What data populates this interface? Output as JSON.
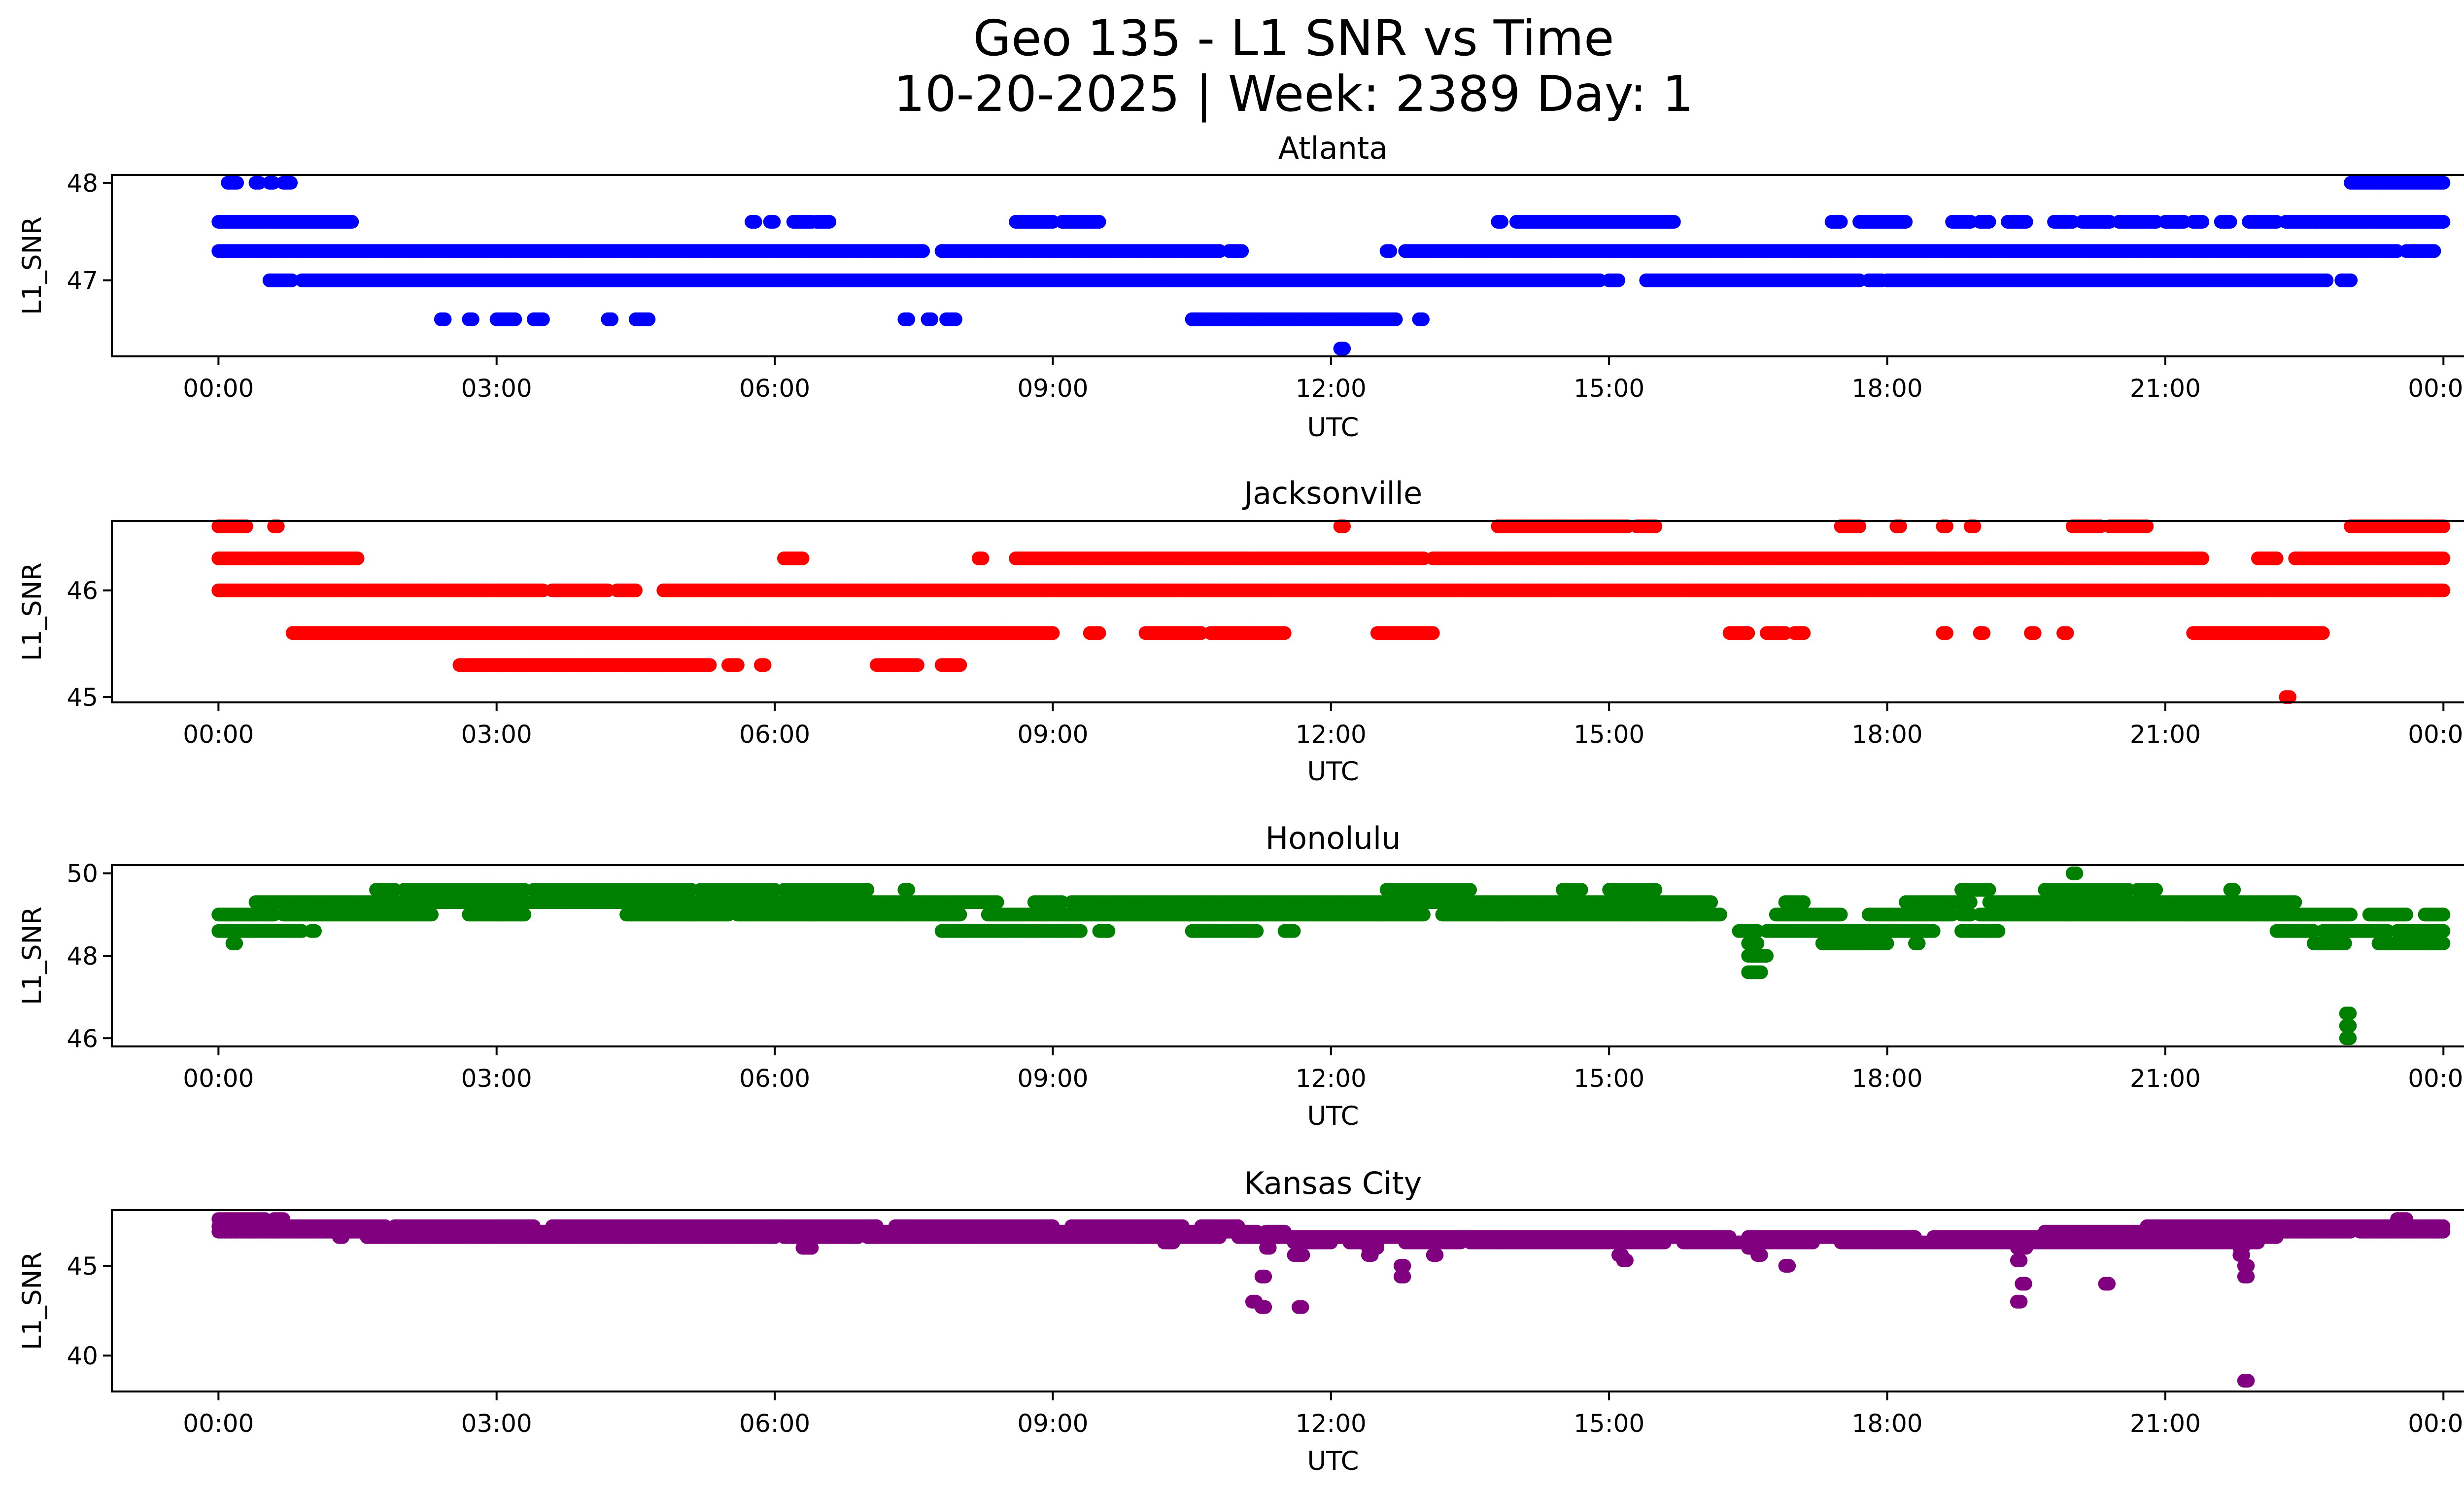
{
  "figure": {
    "title_line1": "Geo 135 - L1 SNR vs Time",
    "title_line2": "10-20-2025 | Week: 2389 Day: 1"
  },
  "chart_data": [
    {
      "type": "scatter",
      "title": "Atlanta",
      "xlabel": "UTC",
      "ylabel": "L1_SNR",
      "color": "#0000ff",
      "xlim_hours": [
        -1.15,
        25.2
      ],
      "ylim": [
        46.22,
        48.08
      ],
      "yticks": [
        47,
        48
      ],
      "xticks": [
        "00:00",
        "03:00",
        "06:00",
        "09:00",
        "12:00",
        "15:00",
        "18:00",
        "21:00",
        "00:00"
      ],
      "bands": [
        {
          "y": 48.0,
          "segments": [
            [
              0.1,
              0.2
            ],
            [
              0.4,
              0.45
            ],
            [
              0.55,
              0.6
            ],
            [
              0.7,
              0.78
            ],
            [
              23.0,
              24.0
            ]
          ]
        },
        {
          "y": 47.6,
          "segments": [
            [
              0.0,
              1.45
            ],
            [
              5.75,
              5.8
            ],
            [
              5.95,
              6.0
            ],
            [
              6.2,
              6.4
            ],
            [
              6.45,
              6.6
            ],
            [
              8.6,
              9.0
            ],
            [
              9.1,
              9.5
            ],
            [
              13.8,
              13.85
            ],
            [
              14.0,
              15.7
            ],
            [
              17.4,
              17.5
            ],
            [
              17.7,
              18.2
            ],
            [
              18.7,
              18.9
            ],
            [
              19.0,
              19.1
            ],
            [
              19.3,
              19.5
            ],
            [
              19.8,
              20.0
            ],
            [
              20.1,
              20.4
            ],
            [
              20.5,
              20.9
            ],
            [
              21.0,
              21.2
            ],
            [
              21.3,
              21.4
            ],
            [
              21.6,
              21.7
            ],
            [
              21.9,
              22.2
            ],
            [
              22.3,
              24.0
            ]
          ]
        },
        {
          "y": 47.3,
          "segments": [
            [
              0.0,
              7.6
            ],
            [
              7.8,
              10.8
            ],
            [
              10.9,
              11.05
            ],
            [
              12.6,
              12.65
            ],
            [
              12.8,
              23.5
            ],
            [
              23.6,
              23.9
            ]
          ]
        },
        {
          "y": 47.0,
          "segments": [
            [
              0.55,
              0.8
            ],
            [
              0.9,
              14.9
            ],
            [
              15.0,
              15.1
            ],
            [
              15.4,
              17.7
            ],
            [
              17.8,
              17.95
            ],
            [
              18.0,
              22.75
            ],
            [
              22.9,
              23.0
            ]
          ]
        },
        {
          "y": 46.6,
          "segments": [
            [
              2.4,
              2.45
            ],
            [
              2.7,
              2.75
            ],
            [
              3.0,
              3.2
            ],
            [
              3.4,
              3.5
            ],
            [
              4.2,
              4.25
            ],
            [
              4.5,
              4.65
            ],
            [
              7.4,
              7.45
            ],
            [
              7.65,
              7.7
            ],
            [
              7.85,
              7.95
            ],
            [
              10.5,
              12.7
            ],
            [
              12.95,
              13.0
            ]
          ]
        },
        {
          "y": 46.3,
          "segments": [
            [
              12.1,
              12.15
            ]
          ]
        }
      ]
    },
    {
      "type": "scatter",
      "title": "Jacksonville",
      "xlabel": "UTC",
      "ylabel": "L1_SNR",
      "color": "#ff0000",
      "xlim_hours": [
        -1.15,
        25.2
      ],
      "ylim": [
        44.95,
        46.65
      ],
      "yticks": [
        45,
        46
      ],
      "xticks": [
        "00:00",
        "03:00",
        "06:00",
        "09:00",
        "12:00",
        "15:00",
        "18:00",
        "21:00",
        "00:00"
      ],
      "bands": [
        {
          "y": 46.6,
          "segments": [
            [
              0.0,
              0.3
            ],
            [
              0.6,
              0.65
            ],
            [
              12.1,
              12.15
            ],
            [
              13.8,
              15.2
            ],
            [
              15.3,
              15.5
            ],
            [
              17.5,
              17.7
            ],
            [
              18.1,
              18.15
            ],
            [
              18.6,
              18.65
            ],
            [
              18.9,
              18.95
            ],
            [
              20.0,
              20.3
            ],
            [
              20.4,
              20.8
            ],
            [
              23.0,
              24.0
            ]
          ]
        },
        {
          "y": 46.3,
          "segments": [
            [
              0.0,
              1.5
            ],
            [
              6.1,
              6.3
            ],
            [
              8.2,
              8.25
            ],
            [
              8.6,
              13.0
            ],
            [
              13.1,
              21.4
            ],
            [
              22.0,
              22.2
            ],
            [
              22.4,
              24.0
            ]
          ]
        },
        {
          "y": 46.0,
          "segments": [
            [
              0.0,
              3.5
            ],
            [
              3.6,
              4.2
            ],
            [
              4.3,
              4.5
            ],
            [
              4.8,
              24.0
            ]
          ]
        },
        {
          "y": 45.6,
          "segments": [
            [
              0.8,
              9.0
            ],
            [
              9.4,
              9.5
            ],
            [
              10.0,
              10.6
            ],
            [
              10.7,
              11.5
            ],
            [
              12.5,
              13.1
            ],
            [
              16.3,
              16.5
            ],
            [
              16.7,
              16.9
            ],
            [
              17.0,
              17.1
            ],
            [
              18.6,
              18.65
            ],
            [
              19.0,
              19.05
            ],
            [
              19.55,
              19.6
            ],
            [
              19.9,
              19.95
            ],
            [
              21.3,
              22.7
            ]
          ]
        },
        {
          "y": 45.3,
          "segments": [
            [
              2.6,
              5.3
            ],
            [
              5.5,
              5.6
            ],
            [
              5.85,
              5.9
            ],
            [
              7.1,
              7.55
            ],
            [
              7.8,
              8.0
            ]
          ]
        },
        {
          "y": 45.0,
          "segments": [
            [
              22.3,
              22.35
            ]
          ]
        }
      ]
    },
    {
      "type": "scatter",
      "title": "Honolulu",
      "xlabel": "UTC",
      "ylabel": "L1_SNR",
      "color": "#008000",
      "xlim_hours": [
        -1.15,
        25.2
      ],
      "ylim": [
        45.8,
        50.2
      ],
      "yticks": [
        46,
        48,
        50
      ],
      "xticks": [
        "00:00",
        "03:00",
        "06:00",
        "09:00",
        "12:00",
        "15:00",
        "18:00",
        "21:00",
        "00:00"
      ],
      "bands": [
        {
          "y": 50.0,
          "segments": [
            [
              20.0,
              20.05
            ]
          ]
        },
        {
          "y": 49.6,
          "segments": [
            [
              1.7,
              1.9
            ],
            [
              2.0,
              3.3
            ],
            [
              3.4,
              5.1
            ],
            [
              5.2,
              6.0
            ],
            [
              6.1,
              7.0
            ],
            [
              7.4,
              7.45
            ],
            [
              12.6,
              13.5
            ],
            [
              14.5,
              14.7
            ],
            [
              15.0,
              15.5
            ],
            [
              18.8,
              19.1
            ],
            [
              19.7,
              20.6
            ],
            [
              20.7,
              20.9
            ],
            [
              21.7,
              21.75
            ]
          ]
        },
        {
          "y": 49.3,
          "segments": [
            [
              0.4,
              8.4
            ],
            [
              8.8,
              9.1
            ],
            [
              9.2,
              16.1
            ],
            [
              16.9,
              17.1
            ],
            [
              18.2,
              18.9
            ],
            [
              19.1,
              22.4
            ]
          ]
        },
        {
          "y": 49.0,
          "segments": [
            [
              0.0,
              0.6
            ],
            [
              0.7,
              2.3
            ],
            [
              2.7,
              3.3
            ],
            [
              4.4,
              5.5
            ],
            [
              5.6,
              8.0
            ],
            [
              8.3,
              13.0
            ],
            [
              13.2,
              16.2
            ],
            [
              16.8,
              17.5
            ],
            [
              17.8,
              18.7
            ],
            [
              18.8,
              18.9
            ],
            [
              19.0,
              23.0
            ],
            [
              23.2,
              23.6
            ],
            [
              23.8,
              24.0
            ]
          ]
        },
        {
          "y": 48.6,
          "segments": [
            [
              0.0,
              0.9
            ],
            [
              1.0,
              1.05
            ],
            [
              7.8,
              9.3
            ],
            [
              9.5,
              9.6
            ],
            [
              10.5,
              11.2
            ],
            [
              11.5,
              11.6
            ],
            [
              16.4,
              16.6
            ],
            [
              16.7,
              18.5
            ],
            [
              18.8,
              19.2
            ],
            [
              22.2,
              22.6
            ],
            [
              22.7,
              23.4
            ],
            [
              23.5,
              24.0
            ]
          ]
        },
        {
          "y": 48.3,
          "segments": [
            [
              0.15,
              0.2
            ],
            [
              16.5,
              16.6
            ],
            [
              17.3,
              18.0
            ],
            [
              18.3,
              18.35
            ],
            [
              22.6,
              22.95
            ],
            [
              23.3,
              24.0
            ]
          ]
        },
        {
          "y": 48.0,
          "segments": [
            [
              16.5,
              16.7
            ]
          ]
        },
        {
          "y": 47.6,
          "segments": [
            [
              16.5,
              16.65
            ]
          ]
        },
        {
          "y": 46.6,
          "segments": [
            [
              22.95,
              23.0
            ]
          ]
        },
        {
          "y": 46.3,
          "segments": [
            [
              22.95,
              23.0
            ]
          ]
        },
        {
          "y": 46.0,
          "segments": [
            [
              22.95,
              23.0
            ]
          ]
        }
      ]
    },
    {
      "type": "scatter",
      "title": "Kansas City",
      "xlabel": "UTC",
      "ylabel": "L1_SNR",
      "color": "#800080",
      "xlim_hours": [
        -1.15,
        25.2
      ],
      "ylim": [
        38.0,
        48.1
      ],
      "yticks": [
        40,
        45
      ],
      "xticks": [
        "00:00",
        "03:00",
        "06:00",
        "09:00",
        "12:00",
        "15:00",
        "18:00",
        "21:00",
        "00:00"
      ],
      "bands": [
        {
          "y": 47.6,
          "segments": [
            [
              0.0,
              0.5
            ],
            [
              0.6,
              0.7
            ],
            [
              23.5,
              23.6
            ]
          ]
        },
        {
          "y": 47.2,
          "segments": [
            [
              0.0,
              1.8
            ],
            [
              1.9,
              3.4
            ],
            [
              3.6,
              7.1
            ],
            [
              7.3,
              9.0
            ],
            [
              9.2,
              10.4
            ],
            [
              10.6,
              11.0
            ],
            [
              20.8,
              24.0
            ]
          ]
        },
        {
          "y": 46.9,
          "segments": [
            [
              0.0,
              6.5
            ],
            [
              6.6,
              11.2
            ],
            [
              11.3,
              11.5
            ],
            [
              19.7,
              21.4
            ],
            [
              21.5,
              23.0
            ],
            [
              23.1,
              24.0
            ]
          ]
        },
        {
          "y": 46.6,
          "segments": [
            [
              1.3,
              1.35
            ],
            [
              1.6,
              6.0
            ],
            [
              6.1,
              6.9
            ],
            [
              7.0,
              10.8
            ],
            [
              11.0,
              16.3
            ],
            [
              16.5,
              18.3
            ],
            [
              18.5,
              22.2
            ]
          ]
        },
        {
          "y": 46.3,
          "segments": [
            [
              10.2,
              10.3
            ],
            [
              11.6,
              12.0
            ],
            [
              12.2,
              12.5
            ],
            [
              12.8,
              13.4
            ],
            [
              13.5,
              15.6
            ],
            [
              15.8,
              17.2
            ],
            [
              17.5,
              22.0
            ]
          ]
        },
        {
          "y": 46.0,
          "segments": [
            [
              6.3,
              6.4
            ],
            [
              11.3,
              11.35
            ],
            [
              12.4,
              12.5
            ],
            [
              16.5,
              16.55
            ],
            [
              19.4,
              19.5
            ],
            [
              21.8,
              21.85
            ]
          ]
        },
        {
          "y": 45.6,
          "segments": [
            [
              11.6,
              11.7
            ],
            [
              12.4,
              12.45
            ],
            [
              13.1,
              13.15
            ],
            [
              15.1,
              15.15
            ],
            [
              16.6,
              16.65
            ],
            [
              21.8,
              21.85
            ]
          ]
        },
        {
          "y": 45.3,
          "segments": [
            [
              15.15,
              15.2
            ],
            [
              19.4,
              19.45
            ]
          ]
        },
        {
          "y": 45.0,
          "segments": [
            [
              12.75,
              12.8
            ],
            [
              16.9,
              16.95
            ],
            [
              21.85,
              21.9
            ]
          ]
        },
        {
          "y": 44.4,
          "segments": [
            [
              11.25,
              11.3
            ],
            [
              12.75,
              12.8
            ],
            [
              21.85,
              21.9
            ]
          ]
        },
        {
          "y": 44.0,
          "segments": [
            [
              19.45,
              19.5
            ],
            [
              20.35,
              20.4
            ]
          ]
        },
        {
          "y": 43.0,
          "segments": [
            [
              11.15,
              11.2
            ],
            [
              19.4,
              19.45
            ]
          ]
        },
        {
          "y": 42.7,
          "segments": [
            [
              11.25,
              11.3
            ],
            [
              11.65,
              11.7
            ]
          ]
        },
        {
          "y": 38.6,
          "segments": [
            [
              21.85,
              21.9
            ]
          ]
        }
      ]
    }
  ]
}
